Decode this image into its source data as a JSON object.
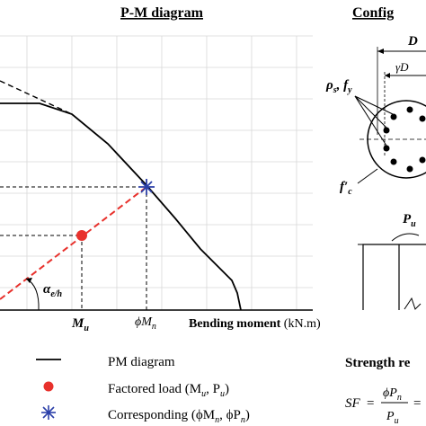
{
  "left_panel": {
    "title": "P-M diagram",
    "label_mu": "M",
    "label_mu_sub": "u",
    "label_phimn": "ϕM",
    "label_phimn_sub": "n",
    "label_alpha": "α",
    "label_alpha_sub": "e/h",
    "x_axis_label": "Bending moment",
    "x_axis_unit": "(kN.m)"
  },
  "right_panel": {
    "title_partial": "Config",
    "label_D": "D",
    "label_gammaD": "γD",
    "label_rho": "ρ",
    "label_rho_sub": "s",
    "label_fy": "f",
    "label_fy_sub": "y",
    "label_fc": "f′",
    "label_fc_sub": "c",
    "label_Pu": "P",
    "label_Pu_sub": "u"
  },
  "legend": {
    "items": [
      {
        "label": "PM diagram",
        "marker": "line"
      },
      {
        "label": "Factored load (M",
        "label_sub1": "u",
        "label_mid": ", P",
        "label_sub2": "u",
        "label_end": ")",
        "marker": "dot"
      },
      {
        "label": "Corresponding (ϕM",
        "label_sub1": "n",
        "label_mid": ", ϕP",
        "label_sub2": "n",
        "label_end": ")",
        "marker": "star"
      }
    ]
  },
  "strength_box": {
    "title_partial": "Strength re",
    "sf": "SF",
    "num": "ϕP",
    "num_sub": "n",
    "den": "P",
    "den_sub": "u"
  },
  "colors": {
    "curve": "#000000",
    "load_line": "#e8312c",
    "factored_dot": "#e8312c",
    "star": "#2b3fa8",
    "grid": "#d8d8d8"
  }
}
